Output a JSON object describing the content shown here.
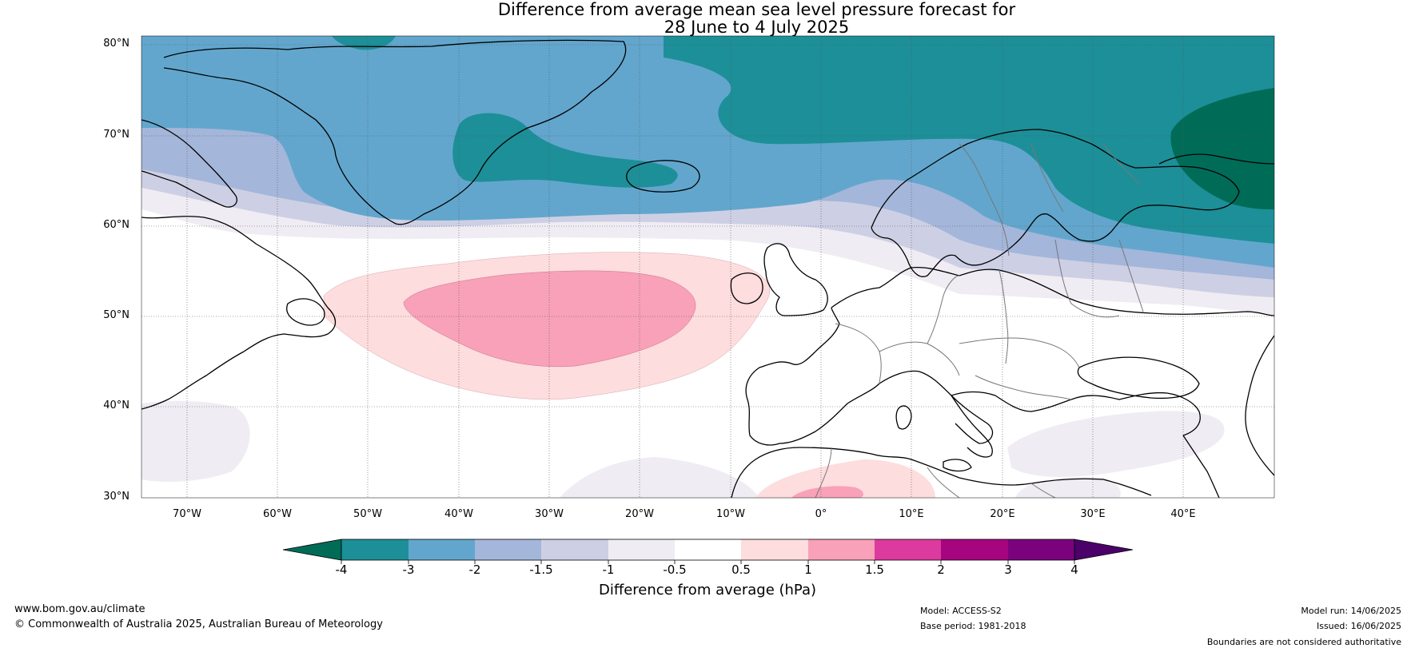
{
  "title": {
    "line1": "Difference from average mean sea level pressure forecast for",
    "line2": "28 June to 4 July 2025"
  },
  "map": {
    "lat_labels": [
      "80°N",
      "70°N",
      "60°N",
      "50°N",
      "40°N",
      "30°N"
    ],
    "lon_labels": [
      "70°W",
      "60°W",
      "50°W",
      "40°W",
      "30°W",
      "20°W",
      "10°W",
      "0°",
      "10°E",
      "20°E",
      "30°E",
      "40°E"
    ],
    "extent": {
      "lon_min": -75,
      "lon_max": 50,
      "lat_min": 30,
      "lat_max": 81
    }
  },
  "colorbar": {
    "title": "Difference from average (hPa)",
    "ticks": [
      "-4",
      "-3",
      "-2",
      "-1.5",
      "-1",
      "-0.5",
      "0.5",
      "1",
      "1.5",
      "2",
      "3",
      "4"
    ],
    "colors": [
      "#006c58",
      "#1d8f98",
      "#62a6cd",
      "#a4b6da",
      "#cdd0e4",
      "#f0ecf3",
      "#ffffff",
      "#fddddd",
      "#f8a1b8",
      "#dc3a9f",
      "#a70480",
      "#7a037d",
      "#4b006a"
    ]
  },
  "footer": {
    "site": "www.bom.gov.au/climate",
    "copyright": "© Commonwealth of Australia 2025, Australian Bureau of Meteorology",
    "model": "Model: ACCESS-S2",
    "base_period": "Base period: 1981-2018",
    "model_run": "Model run: 14/06/2025",
    "issued": "Issued: 16/06/2025",
    "disclaimer": "Boundaries are not considered authoritative"
  }
}
